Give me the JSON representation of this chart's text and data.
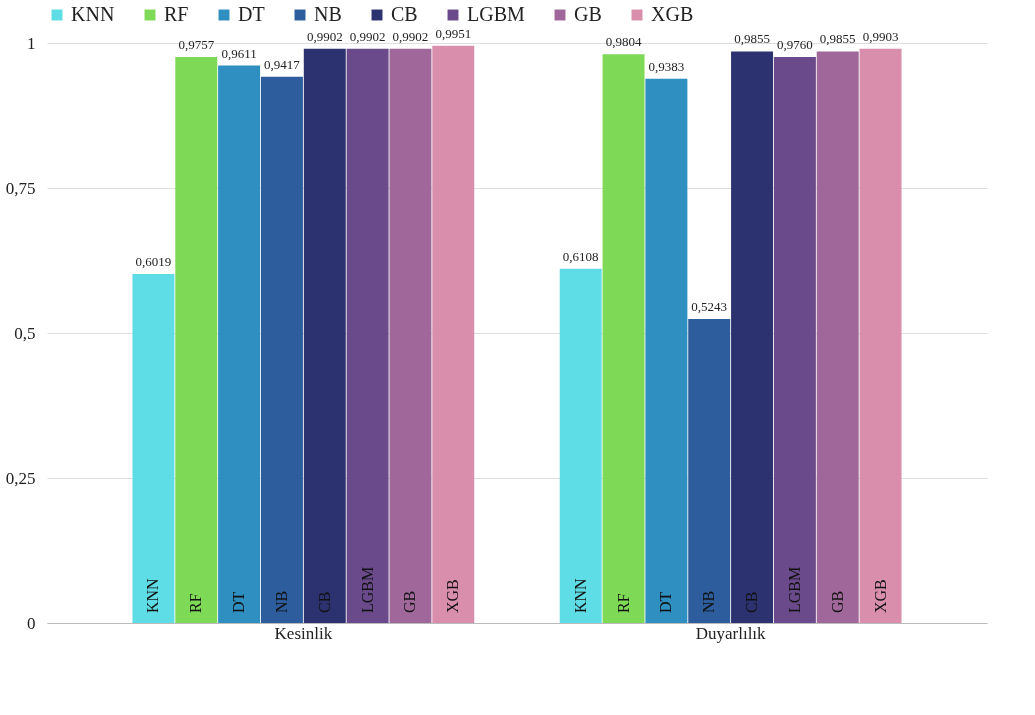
{
  "chart_data": {
    "type": "bar",
    "categories": [
      "Kesinlik",
      "Duyarlılık"
    ],
    "series": [
      {
        "name": "KNN",
        "color": "#5fdde6",
        "values": [
          0.6019,
          0.6108
        ],
        "value_labels": [
          "0,6019",
          "0,6108"
        ]
      },
      {
        "name": "RF",
        "color": "#7ed957",
        "values": [
          0.9757,
          0.9804
        ],
        "value_labels": [
          "0,9757",
          "0,9804"
        ]
      },
      {
        "name": "DT",
        "color": "#2e8fc0",
        "values": [
          0.9611,
          0.9383
        ],
        "value_labels": [
          "0,9611",
          "0,9383"
        ]
      },
      {
        "name": "NB",
        "color": "#2d5d9c",
        "values": [
          0.9417,
          0.5243
        ],
        "value_labels": [
          "0,9417",
          "0,5243"
        ]
      },
      {
        "name": "CB",
        "color": "#2c3270",
        "values": [
          0.9902,
          0.9855
        ],
        "value_labels": [
          "0,9902",
          "0,9855"
        ]
      },
      {
        "name": "LGBM",
        "color": "#6a4a8a",
        "values": [
          0.9902,
          0.976
        ],
        "value_labels": [
          "0,9902",
          "0,9760"
        ]
      },
      {
        "name": "GB",
        "color": "#a0689a",
        "values": [
          0.9902,
          0.9855
        ],
        "value_labels": [
          "0,9902",
          "0,9855"
        ]
      },
      {
        "name": "XGB",
        "color": "#d98fab",
        "values": [
          0.9951,
          0.9903
        ],
        "value_labels": [
          "0,9951",
          "0,9903"
        ]
      }
    ],
    "ylim": [
      0,
      1
    ],
    "yticks": [
      0,
      {
        "value": 0.25,
        "label": "0,25"
      },
      {
        "value": 0.5,
        "label": "0,5"
      },
      {
        "value": 0.75,
        "label": "0,75"
      },
      1
    ],
    "grid": "y",
    "legend": "top"
  }
}
